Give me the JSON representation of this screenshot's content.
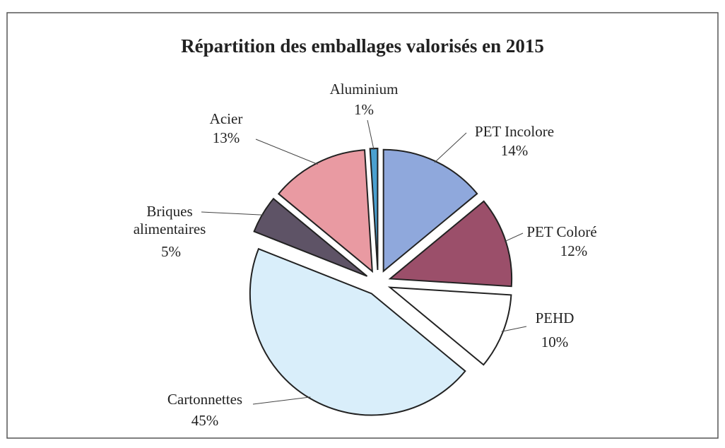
{
  "chart_data": {
    "type": "pie",
    "title": "Répartition des emballages valorisés en 2015",
    "categories": [
      "PET Incolore",
      "PET Coloré",
      "PEHD",
      "Cartonnettes",
      "Briques alimentaires",
      "Acier",
      "Aluminium"
    ],
    "values": [
      14,
      12,
      10,
      45,
      5,
      13,
      1
    ],
    "value_labels": [
      "14%",
      "12%",
      "10%",
      "45%",
      "5%",
      "13%",
      "1%"
    ],
    "colors": [
      "#8fa8dc",
      "#9b4f6a",
      "#ffffff",
      "#d9eefa",
      "#5e5366",
      "#e99aa2",
      "#4aa0d0"
    ]
  }
}
